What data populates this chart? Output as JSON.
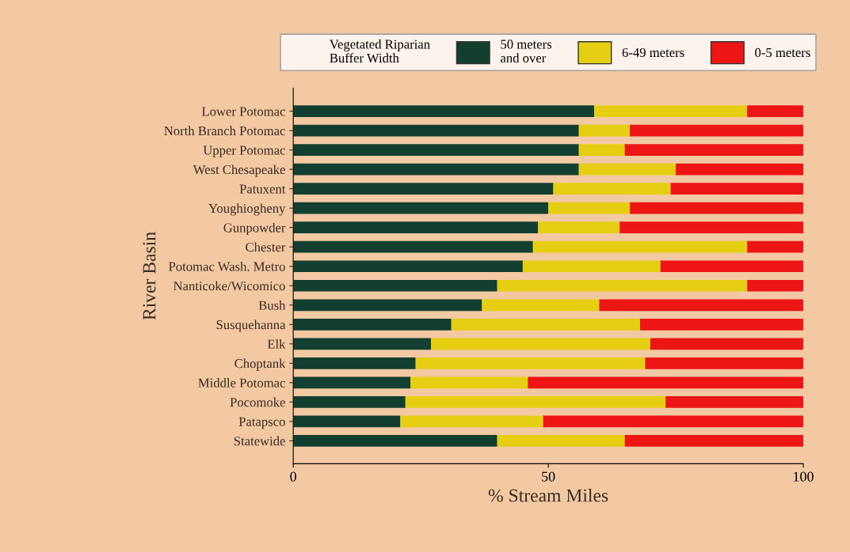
{
  "chart_data": {
    "type": "bar",
    "orientation": "horizontal",
    "stacked": true,
    "xlabel": "% Stream Miles",
    "ylabel": "River Basin",
    "legend_title": "Vegetated Riparian\nBuffer Width",
    "legend": "top",
    "categories": [
      "Lower Potomac",
      "North Branch Potomac",
      "Upper Potomac",
      "West Chesapeake",
      "Patuxent",
      "Youghiogheny",
      "Gunpowder",
      "Chester",
      "Potomac Wash. Metro",
      "Nanticoke/Wicomico",
      "Bush",
      "Susquehanna",
      "Elk",
      "Choptank",
      "Middle Potomac",
      "Pocomoke",
      "Patapsco",
      "Statewide"
    ],
    "series": [
      {
        "name": "50 meters\nand over",
        "color": "#123f30",
        "values": [
          59,
          56,
          56,
          56,
          51,
          50,
          48,
          47,
          45,
          40,
          37,
          31,
          27,
          24,
          23,
          22,
          21,
          40
        ]
      },
      {
        "name": "6-49 meters",
        "color": "#e6cf12",
        "values": [
          30,
          10,
          9,
          19,
          23,
          16,
          16,
          42,
          27,
          49,
          23,
          37,
          43,
          45,
          23,
          51,
          28,
          25
        ]
      },
      {
        "name": "0-5 meters",
        "color": "#ee1515",
        "values": [
          11,
          34,
          35,
          25,
          26,
          34,
          36,
          11,
          28,
          11,
          40,
          32,
          30,
          31,
          54,
          27,
          51,
          35
        ]
      }
    ],
    "xlim": [
      0,
      100
    ],
    "xticks": [
      0,
      50,
      100
    ],
    "grid": false
  }
}
